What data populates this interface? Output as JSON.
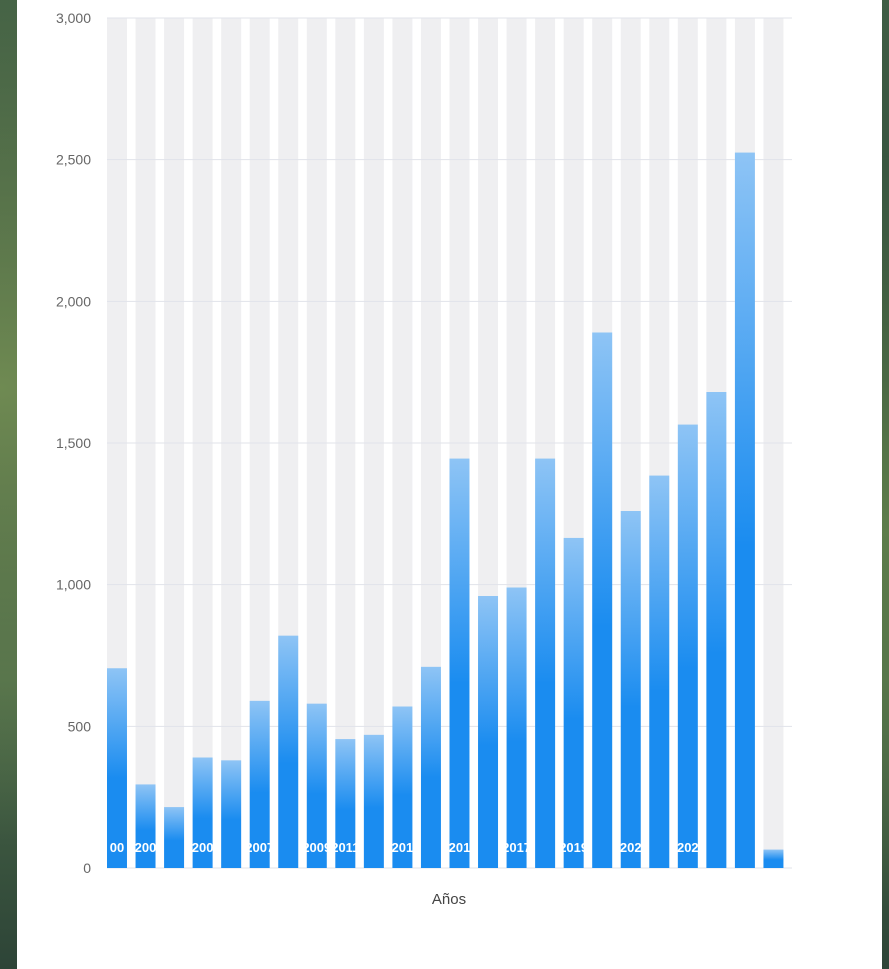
{
  "chart_data": {
    "type": "bar",
    "title": "",
    "xlabel": "Años",
    "ylabel": "",
    "ylim": [
      0,
      3000
    ],
    "y_ticks": [
      "0",
      "500",
      "1,000",
      "1,500",
      "2,000",
      "2,500",
      "3,000"
    ],
    "y_tick_values": [
      0,
      500,
      1000,
      1500,
      2000,
      2500,
      3000
    ],
    "grid": true,
    "bar_color": "#1a8cf0",
    "bar_color_light": "#8ec4f5",
    "column_band_color": "#efeff1",
    "values": [
      705,
      295,
      215,
      390,
      380,
      590,
      820,
      580,
      455,
      470,
      570,
      710,
      1445,
      960,
      990,
      1445,
      1165,
      1890,
      1260,
      1385,
      1565,
      1680,
      2525,
      65
    ],
    "bar_labels": [
      "00",
      "200",
      "",
      "200",
      "",
      "2007",
      "",
      "2009",
      "2011",
      "",
      "201",
      "",
      "201",
      "",
      "2017",
      "",
      "2019",
      "",
      "202",
      "",
      "202",
      "",
      "",
      ""
    ]
  }
}
